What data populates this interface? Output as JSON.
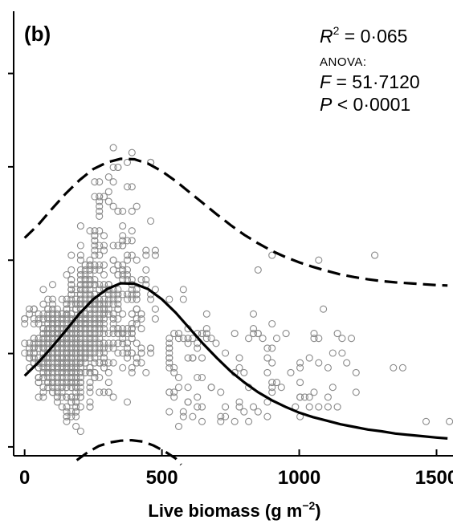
{
  "chart_data": {
    "type": "scatter",
    "panel_label": "(b)",
    "xlabel": "Live biomass (g m−2)",
    "xlabel_parts": {
      "main": "Live biomass (g m",
      "sup": "−2",
      "close": ")"
    },
    "ylabel": "",
    "xlim": [
      -40,
      1560
    ],
    "ylim": [
      0,
      1
    ],
    "x_ticks": [
      0,
      500,
      1000,
      1500
    ],
    "x_tick_labels": [
      "0",
      "500",
      "1000",
      "1500"
    ],
    "y_ticks": [
      0.02,
      0.23,
      0.44,
      0.65,
      0.86
    ],
    "y_tick_labels": [
      "",
      "",
      "",
      "",
      ""
    ],
    "grid": false,
    "point_color": "#8a8a8a",
    "stats": {
      "r2": {
        "var": "R",
        "sup": "2",
        "text": " = 0·065"
      },
      "anova": "ANOVA:",
      "f": {
        "var": "F",
        "text": " = 51·7120"
      },
      "p": {
        "var": "P",
        "text": " < 0·0001"
      }
    },
    "series": [
      {
        "kind": "fit",
        "style": "solid",
        "x": [
          0,
          50,
          100,
          150,
          200,
          250,
          300,
          350,
          400,
          450,
          500,
          550,
          600,
          650,
          700,
          750,
          800,
          850,
          900,
          950,
          1000,
          1050,
          1100,
          1150,
          1200,
          1250,
          1300,
          1350,
          1400,
          1450,
          1500,
          1540
        ],
        "y": [
          0.18,
          0.21,
          0.245,
          0.282,
          0.32,
          0.352,
          0.375,
          0.388,
          0.387,
          0.375,
          0.352,
          0.322,
          0.287,
          0.252,
          0.22,
          0.19,
          0.165,
          0.143,
          0.125,
          0.11,
          0.097,
          0.087,
          0.079,
          0.071,
          0.065,
          0.059,
          0.055,
          0.05,
          0.047,
          0.044,
          0.041,
          0.039
        ]
      },
      {
        "kind": "upper_quantile",
        "style": "dashed",
        "x": [
          0,
          50,
          100,
          150,
          200,
          250,
          300,
          350,
          400,
          450,
          500,
          550,
          600,
          650,
          700,
          750,
          800,
          850,
          900,
          950,
          1000,
          1050,
          1100,
          1150,
          1200,
          1250,
          1300,
          1350,
          1400,
          1450,
          1500,
          1540
        ],
        "y": [
          0.49,
          0.52,
          0.556,
          0.59,
          0.62,
          0.645,
          0.66,
          0.668,
          0.667,
          0.657,
          0.64,
          0.618,
          0.593,
          0.568,
          0.543,
          0.519,
          0.497,
          0.478,
          0.461,
          0.447,
          0.435,
          0.425,
          0.416,
          0.408,
          0.402,
          0.397,
          0.393,
          0.39,
          0.388,
          0.386,
          0.384,
          0.383
        ]
      },
      {
        "kind": "lower_quantile",
        "style": "dashed",
        "x": [
          190,
          230,
          270,
          310,
          350,
          390,
          430,
          470,
          510,
          550,
          570
        ],
        "y": [
          -0.01,
          0.008,
          0.022,
          0.03,
          0.034,
          0.035,
          0.032,
          0.023,
          0.01,
          -0.006,
          -0.02
        ]
      }
    ]
  }
}
